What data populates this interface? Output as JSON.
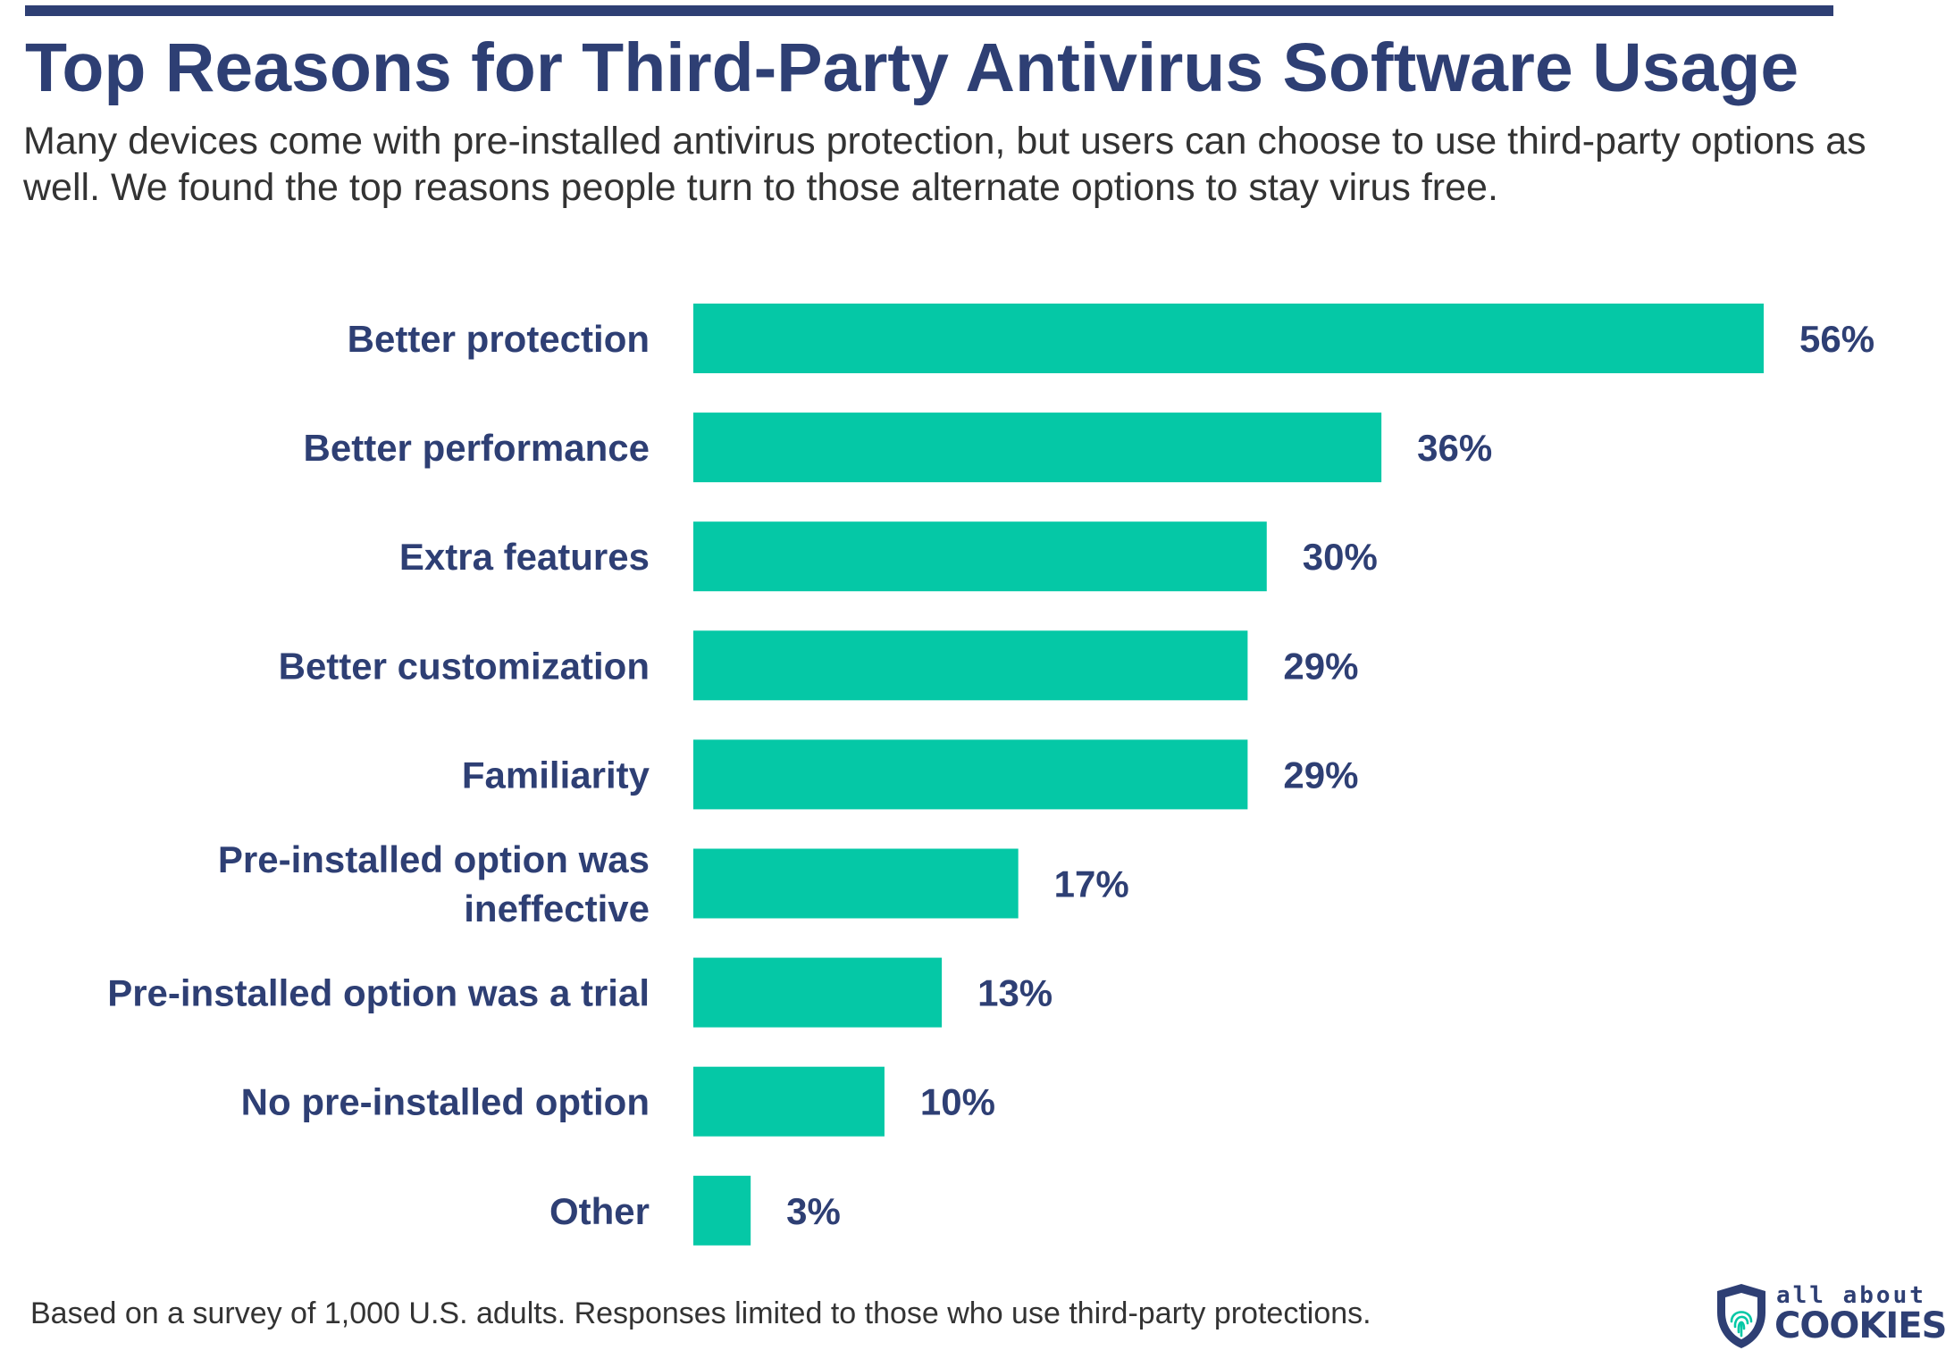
{
  "header": {
    "title": "Top Reasons for Third-Party Antivirus Software Usage",
    "subtitle": "Many devices come with pre-installed antivirus protection, but users can choose to use third-party options as well. We found the top reasons people turn to those alternate options to stay virus free."
  },
  "chart_data": {
    "type": "bar",
    "orientation": "horizontal",
    "title": "Top Reasons for Third-Party Antivirus Software Usage",
    "xlabel": "",
    "ylabel": "",
    "unit": "%",
    "xlim": [
      0,
      56
    ],
    "grid": false,
    "legend": "none",
    "categories": [
      [
        "Better protection"
      ],
      [
        "Better performance"
      ],
      [
        "Extra features"
      ],
      [
        "Better customization"
      ],
      [
        "Familiarity"
      ],
      [
        "Pre-installed option was",
        "ineffective"
      ],
      [
        "Pre-installed option was a trial"
      ],
      [
        "No pre-installed option"
      ],
      [
        "Other"
      ]
    ],
    "values": [
      56,
      36,
      30,
      29,
      29,
      17,
      13,
      10,
      3
    ],
    "value_labels": [
      "56%",
      "36%",
      "30%",
      "29%",
      "29%",
      "17%",
      "13%",
      "10%",
      "3%"
    ],
    "bar_color": "#05c8a6"
  },
  "footer": {
    "note": "Based on a survey of 1,000 U.S. adults. Responses limited to those who use third-party protections.",
    "logo_top": "all about",
    "logo_bottom": "COOKIES"
  },
  "colors": {
    "brand": "#2e3f74",
    "bar": "#05c8a6",
    "text": "#333333"
  }
}
